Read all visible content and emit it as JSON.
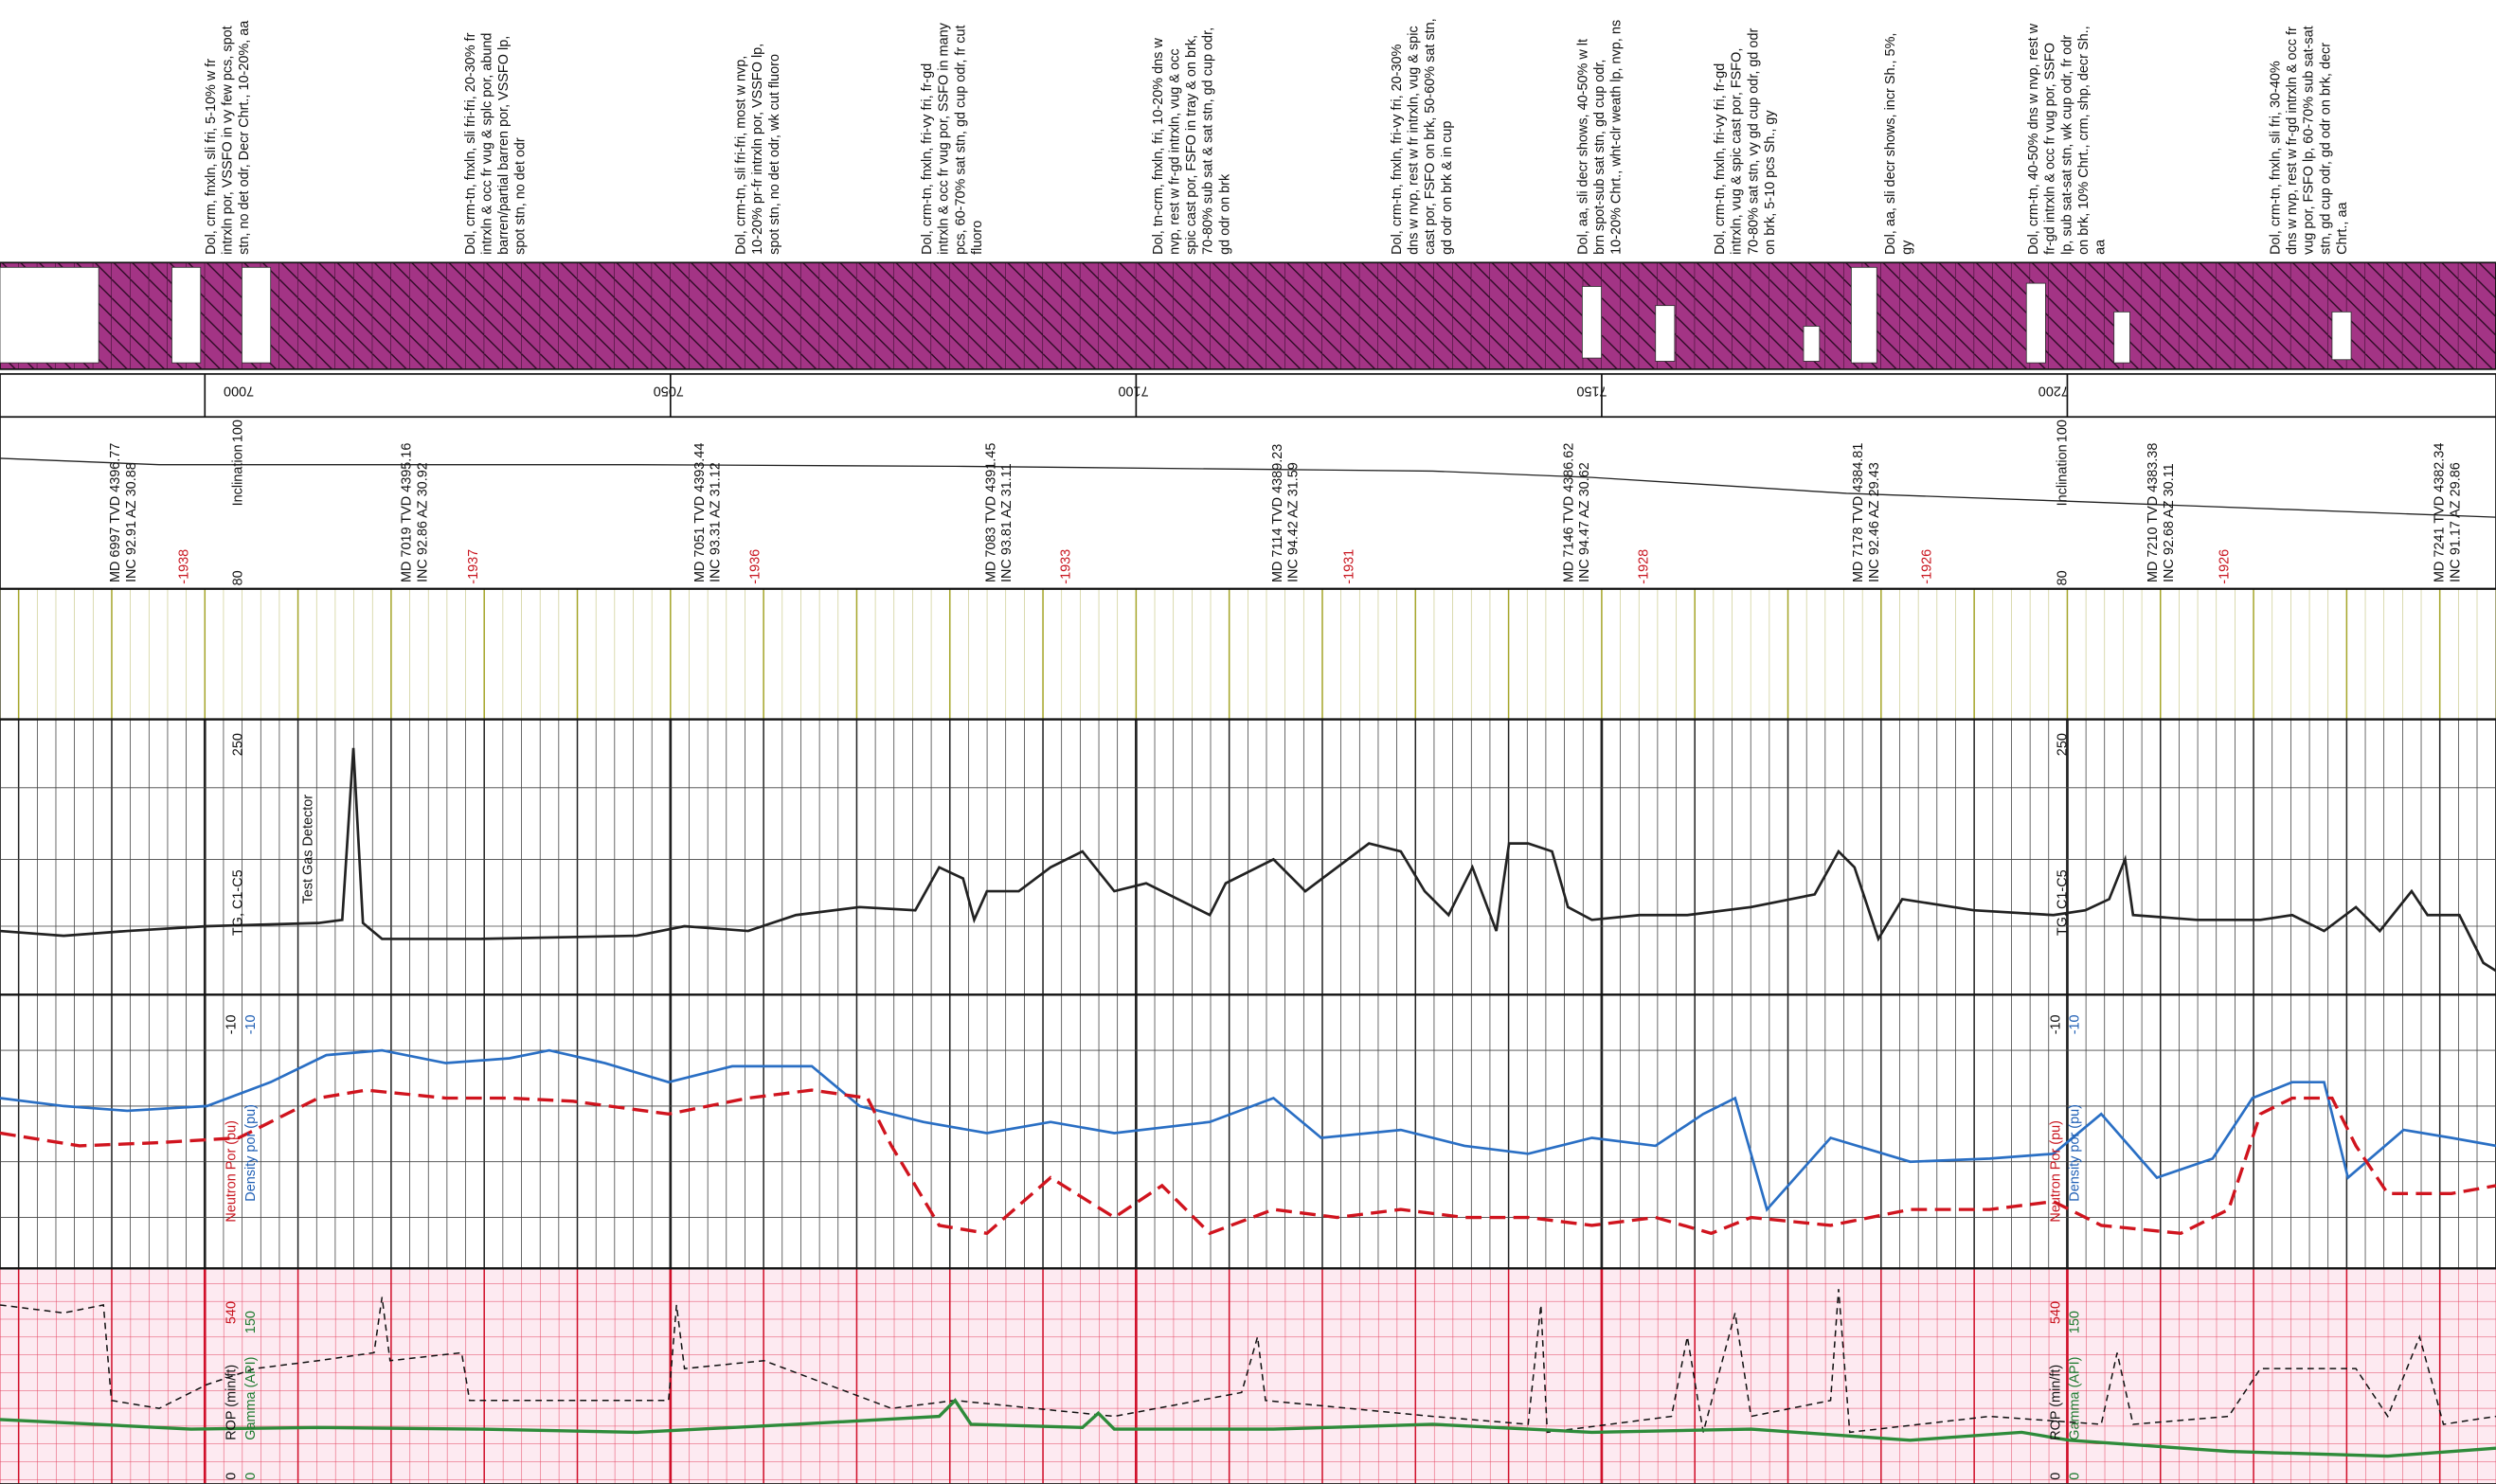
{
  "descriptions": [
    {
      "lines": [
        "Dol, crm, fnxln, sli fri, 5-10% w fr",
        "intrxln por, VSSFO in vy few pcs, spot",
        "stn, no det odr, Decr Chrt., 10-20%, aa"
      ]
    },
    {
      "lines": [
        "Dol, crm-tn, fnxln, sli fri-fri, 20-30% fr",
        "intrxln & occ fr vug & splc por, abund",
        "barren/partial barren por, VSSFO lp,",
        "spot stn, no det odr"
      ]
    },
    {
      "lines": [
        "Dol, crm-tn, sli fri-fri, most w nvp,",
        "10-20% pr-fr intrxln por, VSSFO lp,",
        "spot stn, no det odr, wk cut fluoro"
      ]
    },
    {
      "lines": [
        "Dol, crm-tn, fnxln, fri-vy fri, fr-gd",
        "intrxln & occ fr vug por, SSFO in many",
        "pcs, 60-70% sat stn, gd cup odr, fr cut",
        "fluoro"
      ]
    },
    {
      "lines": [
        "Dol, tn-crm, fnxln, fri, 10-20% dns w",
        "nvp, rest w fr-gd intrxln, vug & occ",
        "spic cast por, FSFO in tray & on brk,",
        "70-80% sub sat & sat stn, gd cup odr,",
        "gd odr on brk"
      ]
    },
    {
      "lines": [
        "Dol, crm-tn, fnxln, fri-vy fri, 20-30%",
        "dns w nvp, rest w fr intrxln, vug & spic",
        "cast por, FSFO on brk, 50-60% sat stn,",
        "gd odr on brk & in cup"
      ]
    },
    {
      "lines": [
        "Dol, aa, sli decr shows, 40-50% w lt",
        "brn spot-sub sat stn, gd cup odr,",
        "10-20% Chrt., wht-clr weath lp, nvp, ns"
      ]
    },
    {
      "lines": [
        "Dol, crm-tn, fnxln, fri-vy fri, fr-gd",
        "intrxln, vug & spic cast por, FSFO,",
        "70-80% sat stn, vy gd cup odr, gd odr",
        "on brk, 5-10 pcs Sh., gy"
      ]
    },
    {
      "lines": [
        "Dol, aa, sli decr shows, incr Sh., 5%,",
        "gy"
      ]
    },
    {
      "lines": [
        "Dol, crm-tn, 40-50% dns w nvp, rest w",
        "fr-gd intrxln & occ fr vug por, SSFO",
        "lp, sub sat-sat stn, wk cup odr, fr odr",
        "on brk, 10% Chrt., crm, shp, decr Sh.,",
        "aa"
      ]
    },
    {
      "lines": [
        "Dol, crm-tn, fnxln, sli fri, 30-40%",
        "dns w nvp, rest w fr-gd intrxln & occ fr",
        "vug por, FSFO lp, 60-70% sub sat-sat",
        "stn, gd cup odr, gd odr on brk, decr",
        "Chrt., aa"
      ]
    }
  ],
  "depths": [
    "7000",
    "7050",
    "7100",
    "7150",
    "7200"
  ],
  "surveys": [
    {
      "md": "MD 6997 TVD 4396.77",
      "inc": "INC 92.91 AZ 30.88",
      "subsea": "-1938"
    },
    {
      "md": "MD 7019 TVD 4395.16",
      "inc": "INC 92.86 AZ 30.92",
      "subsea": "-1937"
    },
    {
      "md": "MD 7051 TVD 4393.44",
      "inc": "INC 93.31 AZ 31.12",
      "subsea": "-1936"
    },
    {
      "md": "MD 7083 TVD 4391.45",
      "inc": "INC 93.81 AZ 31.11",
      "subsea": "-1933"
    },
    {
      "md": "MD 7114 TVD 4389.23",
      "inc": "INC 94.42 AZ 31.59",
      "subsea": "-1931"
    },
    {
      "md": "MD 7146 TVD 4386.62",
      "inc": "INC 94.47 AZ 30.62",
      "subsea": "-1928"
    },
    {
      "md": "MD 7178 TVD 4384.81",
      "inc": "INC 92.46 AZ 29.43",
      "subsea": "-1926"
    },
    {
      "md": "MD 7210 TVD 4383.38",
      "inc": "INC 92.68 AZ 30.11",
      "subsea": "-1926"
    },
    {
      "md": "MD 7241 TVD 4382.34",
      "inc": "INC 91.17 AZ 29.86"
    }
  ],
  "tracks": {
    "inclination": {
      "label": "Inclination",
      "max": "100",
      "min": "80"
    },
    "gas": {
      "max": "250",
      "label": "TG, C1-C5",
      "note": "Test Gas Detector"
    },
    "porosity": {
      "neutron_min": "-10",
      "density_min": "-10",
      "neutron_label": "Neutron Por (pu)",
      "density_label": "Density por (pu)"
    },
    "rop_gamma": {
      "rop_max": "540",
      "gamma_max": "150",
      "rop_label": "ROP (min/ft)",
      "gamma_label": "Gamma (API)",
      "rop_min": "0",
      "gamma_min": "0"
    }
  }
}
